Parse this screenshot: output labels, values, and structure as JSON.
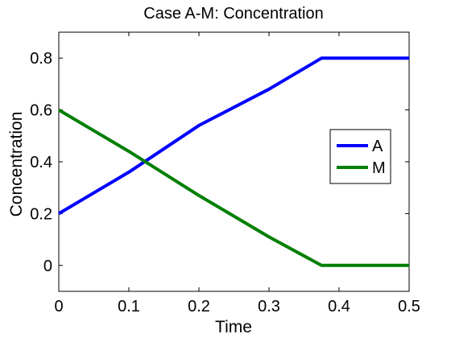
{
  "chart_data": {
    "type": "line",
    "title": "Case A-M: Concentration",
    "xlabel": "Time",
    "ylabel": "Concentration",
    "xlim": [
      0,
      0.5
    ],
    "ylim": [
      -0.1,
      0.9
    ],
    "xticks": [
      0,
      0.1,
      0.2,
      0.3,
      0.4,
      0.5
    ],
    "xtick_labels": [
      "0",
      "0.1",
      "0.2",
      "0.3",
      "0.4",
      "0.5"
    ],
    "yticks": [
      0,
      0.2,
      0.4,
      0.6,
      0.8
    ],
    "ytick_labels": [
      "0",
      "0.2",
      "0.4",
      "0.6",
      "0.8"
    ],
    "grid": false,
    "legend": {
      "position": "right",
      "entries": [
        "A",
        "M"
      ]
    },
    "series": [
      {
        "name": "A",
        "color": "#0000ff",
        "x": [
          0,
          0.1,
          0.2,
          0.3,
          0.375,
          0.4,
          0.5
        ],
        "y": [
          0.2,
          0.36,
          0.54,
          0.68,
          0.8,
          0.8,
          0.8
        ]
      },
      {
        "name": "M",
        "color": "#007f00",
        "x": [
          0,
          0.1,
          0.2,
          0.3,
          0.375,
          0.4,
          0.5
        ],
        "y": [
          0.6,
          0.44,
          0.27,
          0.11,
          0.0,
          0.0,
          0.0
        ]
      }
    ]
  }
}
